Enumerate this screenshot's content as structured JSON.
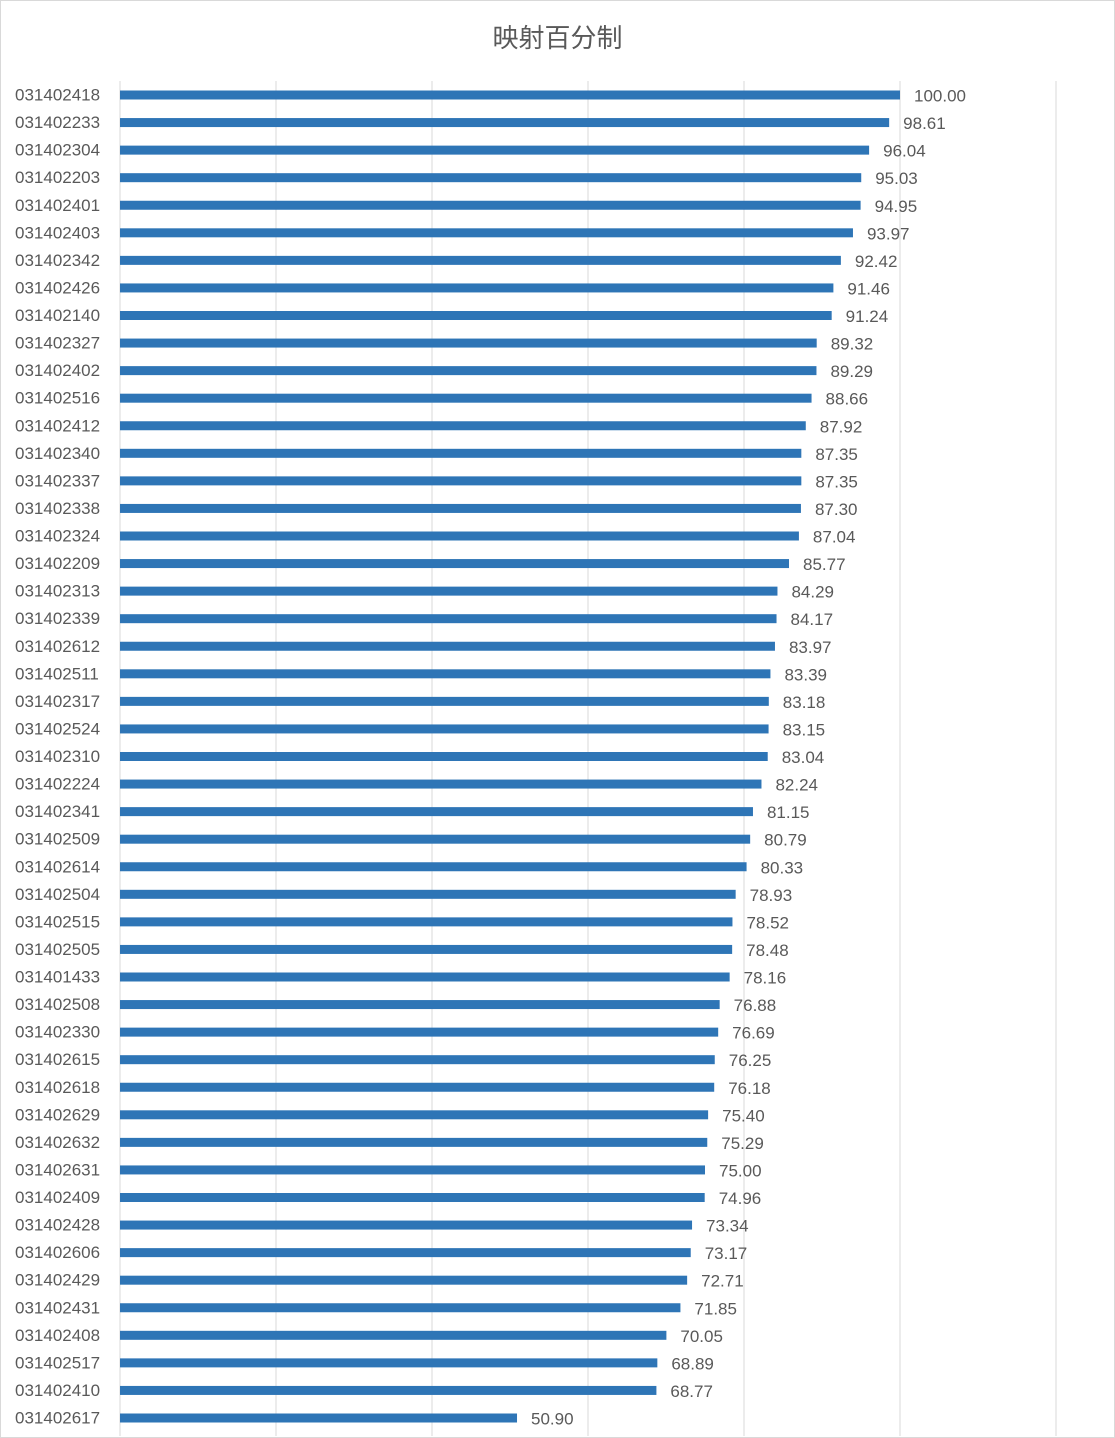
{
  "chart_data": {
    "type": "bar",
    "orientation": "horizontal",
    "title": "映射百分制",
    "xlabel": "",
    "ylabel": "",
    "xlim": [
      0,
      120
    ],
    "grid": true,
    "legend": "none",
    "bar_color": "#2e75b6",
    "categories": [
      "031402418",
      "031402233",
      "031402304",
      "031402203",
      "031402401",
      "031402403",
      "031402342",
      "031402426",
      "031402140",
      "031402327",
      "031402402",
      "031402516",
      "031402412",
      "031402340",
      "031402337",
      "031402338",
      "031402324",
      "031402209",
      "031402313",
      "031402339",
      "031402612",
      "031402511",
      "031402317",
      "031402524",
      "031402310",
      "031402224",
      "031402341",
      "031402509",
      "031402614",
      "031402504",
      "031402515",
      "031402505",
      "031401433",
      "031402508",
      "031402330",
      "031402615",
      "031402618",
      "031402629",
      "031402632",
      "031402631",
      "031402409",
      "031402428",
      "031402606",
      "031402429",
      "031402431",
      "031402408",
      "031402517",
      "031402410",
      "031402617"
    ],
    "values": [
      100.0,
      98.61,
      96.04,
      95.03,
      94.95,
      93.97,
      92.42,
      91.46,
      91.24,
      89.32,
      89.29,
      88.66,
      87.92,
      87.35,
      87.35,
      87.3,
      87.04,
      85.77,
      84.29,
      84.17,
      83.97,
      83.39,
      83.18,
      83.15,
      83.04,
      82.24,
      81.15,
      80.79,
      80.33,
      78.93,
      78.52,
      78.48,
      78.16,
      76.88,
      76.69,
      76.25,
      76.18,
      75.4,
      75.29,
      75.0,
      74.96,
      73.34,
      73.17,
      72.71,
      71.85,
      70.05,
      68.89,
      68.77,
      50.9
    ],
    "value_labels": [
      "100.00",
      "98.61",
      "96.04",
      "95.03",
      "94.95",
      "93.97",
      "92.42",
      "91.46",
      "91.24",
      "89.32",
      "89.29",
      "88.66",
      "87.92",
      "87.35",
      "87.35",
      "87.30",
      "87.04",
      "85.77",
      "84.29",
      "84.17",
      "83.97",
      "83.39",
      "83.18",
      "83.15",
      "83.04",
      "82.24",
      "81.15",
      "80.79",
      "80.33",
      "78.93",
      "78.52",
      "78.48",
      "78.16",
      "76.88",
      "76.69",
      "76.25",
      "76.18",
      "75.40",
      "75.29",
      "75.00",
      "74.96",
      "73.34",
      "73.17",
      "72.71",
      "71.85",
      "70.05",
      "68.89",
      "68.77",
      "50.90"
    ]
  }
}
